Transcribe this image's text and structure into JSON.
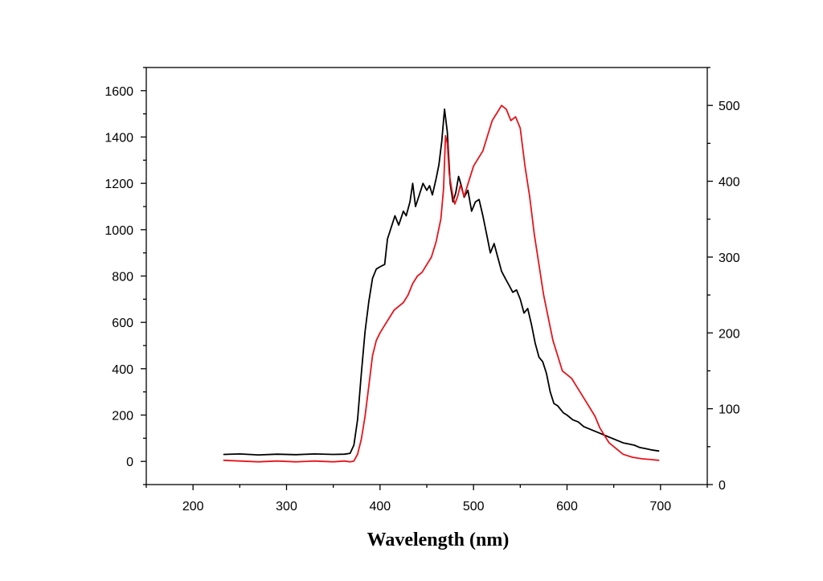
{
  "chart_data": {
    "type": "line",
    "xlabel": "Wavelength (nm)",
    "xlim": [
      150,
      750
    ],
    "ylim_left": [
      -100,
      1700
    ],
    "ylim_right": [
      0,
      550
    ],
    "x_ticks": [
      200,
      300,
      400,
      500,
      600,
      700
    ],
    "y_left_ticks": [
      0,
      200,
      400,
      600,
      800,
      1000,
      1200,
      1400,
      1600
    ],
    "y_right_ticks": [
      0,
      100,
      200,
      300,
      400,
      500
    ],
    "grid": false,
    "legend": "none",
    "series": [
      {
        "axis": "left",
        "color": "#000000",
        "x": [
          233,
          250,
          270,
          290,
          310,
          330,
          350,
          362,
          368,
          372,
          376,
          380,
          384,
          388,
          392,
          396,
          400,
          405,
          408,
          412,
          416,
          420,
          425,
          428,
          432,
          435,
          438,
          442,
          446,
          450,
          453,
          456,
          460,
          463,
          466,
          469,
          472,
          475,
          478,
          481,
          484,
          487,
          490,
          494,
          498,
          502,
          506,
          510,
          514,
          518,
          522,
          526,
          530,
          534,
          538,
          542,
          546,
          550,
          554,
          558,
          562,
          566,
          570,
          574,
          578,
          582,
          586,
          590,
          596,
          600,
          606,
          612,
          618,
          624,
          630,
          636,
          642,
          648,
          654,
          660,
          666,
          672,
          678,
          684,
          690,
          698
        ],
        "values": [
          30,
          32,
          28,
          31,
          29,
          32,
          30,
          31,
          35,
          70,
          180,
          380,
          560,
          690,
          790,
          830,
          840,
          850,
          960,
          1010,
          1060,
          1020,
          1080,
          1060,
          1120,
          1200,
          1100,
          1150,
          1200,
          1170,
          1190,
          1150,
          1220,
          1280,
          1380,
          1520,
          1420,
          1200,
          1120,
          1160,
          1230,
          1190,
          1140,
          1170,
          1080,
          1120,
          1130,
          1060,
          980,
          900,
          940,
          880,
          820,
          790,
          760,
          730,
          740,
          700,
          640,
          660,
          590,
          510,
          450,
          430,
          380,
          300,
          250,
          240,
          210,
          200,
          180,
          170,
          150,
          140,
          130,
          120,
          110,
          100,
          90,
          80,
          75,
          70,
          60,
          55,
          50,
          45
        ]
      },
      {
        "axis": "right",
        "color": "#e8131b",
        "x": [
          233,
          250,
          270,
          290,
          310,
          330,
          350,
          362,
          368,
          372,
          376,
          380,
          384,
          388,
          392,
          396,
          400,
          405,
          410,
          415,
          420,
          425,
          430,
          435,
          440,
          445,
          450,
          455,
          460,
          465,
          468,
          470,
          472,
          474,
          476,
          478,
          480,
          483,
          486,
          490,
          495,
          500,
          505,
          510,
          515,
          520,
          525,
          530,
          535,
          540,
          545,
          550,
          555,
          560,
          565,
          570,
          575,
          580,
          585,
          590,
          595,
          600,
          605,
          610,
          615,
          620,
          625,
          630,
          635,
          640,
          645,
          650,
          660,
          670,
          680,
          690,
          698
        ],
        "values": [
          32,
          31,
          30,
          31,
          30,
          31,
          30,
          31,
          30,
          31,
          40,
          60,
          90,
          130,
          170,
          190,
          200,
          210,
          220,
          230,
          235,
          240,
          250,
          265,
          275,
          280,
          290,
          300,
          320,
          350,
          390,
          460,
          450,
          410,
          395,
          380,
          370,
          380,
          395,
          380,
          400,
          420,
          430,
          440,
          460,
          480,
          490,
          500,
          495,
          480,
          485,
          470,
          420,
          380,
          330,
          290,
          250,
          220,
          190,
          170,
          150,
          145,
          140,
          130,
          120,
          110,
          100,
          90,
          75,
          65,
          55,
          50,
          40,
          36,
          34,
          33,
          32
        ]
      }
    ]
  }
}
